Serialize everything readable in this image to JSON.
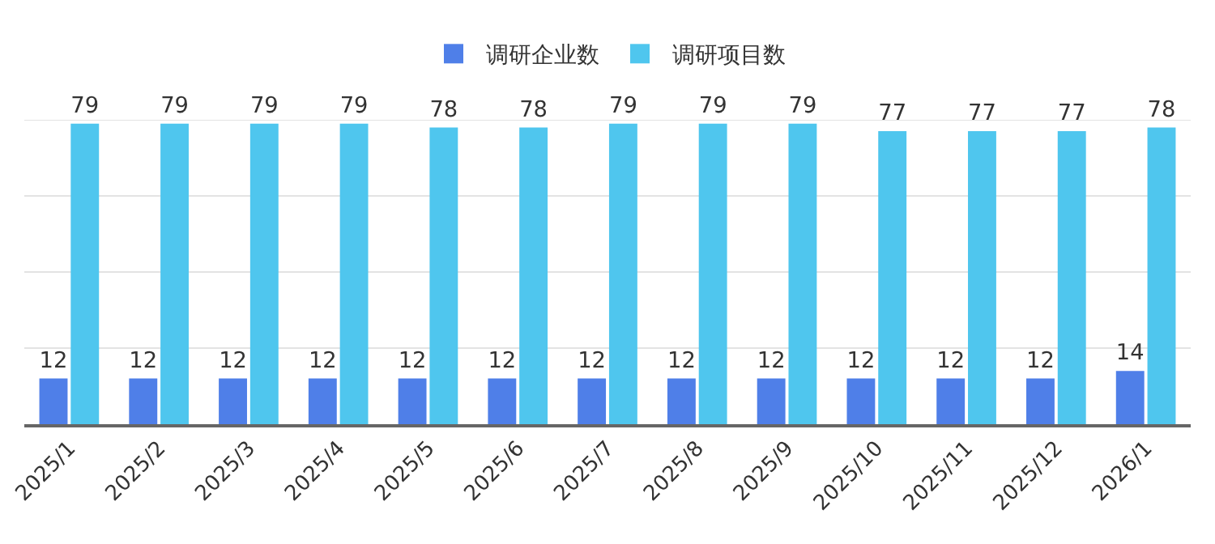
{
  "chart_data": {
    "type": "bar",
    "categories": [
      "2025/1",
      "2025/2",
      "2025/3",
      "2025/4",
      "2025/5",
      "2025/6",
      "2025/7",
      "2025/8",
      "2025/9",
      "2025/10",
      "2025/11",
      "2025/12",
      "2026/1"
    ],
    "series": [
      {
        "name": "调研企业数",
        "color": "#4f7fe8",
        "values": [
          12,
          12,
          12,
          12,
          12,
          12,
          12,
          12,
          12,
          12,
          12,
          12,
          14
        ]
      },
      {
        "name": "调研项目数",
        "color": "#4fc6ee",
        "values": [
          79,
          79,
          79,
          79,
          78,
          78,
          79,
          79,
          79,
          77,
          77,
          77,
          78
        ]
      }
    ],
    "ylim": [
      0,
      80
    ],
    "yticks": [
      {
        "value": 0,
        "label": null
      },
      {
        "value": 20,
        "label": null
      },
      {
        "value": 40,
        "label": null
      },
      {
        "value": 60,
        "label": null
      },
      {
        "value": 80,
        "label": null
      }
    ],
    "grid": "y",
    "legend": "top",
    "data_labels": true,
    "tick_labels": "x"
  }
}
